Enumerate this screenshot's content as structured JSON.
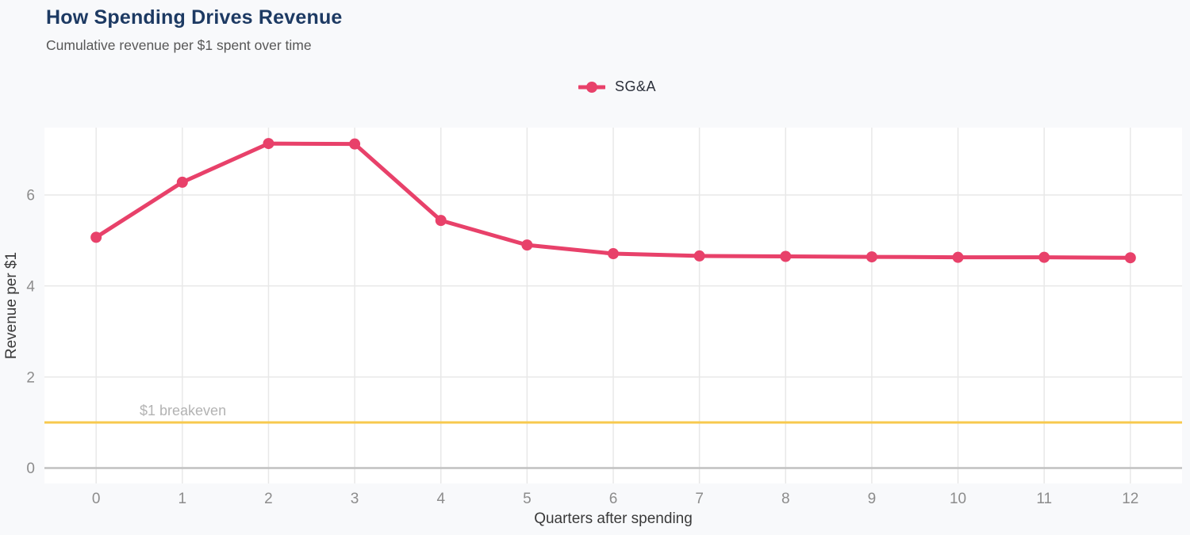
{
  "header": {
    "title": "How Spending Drives Revenue",
    "subtitle": "Cumulative revenue per $1 spent over time"
  },
  "legend": {
    "series_label": "SG&A",
    "position": "top-center"
  },
  "chart_data": {
    "type": "line",
    "title": "How Spending Drives Revenue",
    "subtitle": "Cumulative revenue per $1 spent over time",
    "xlabel": "Quarters after spending",
    "ylabel": "Revenue per $1",
    "x": [
      0,
      1,
      2,
      3,
      4,
      5,
      6,
      7,
      8,
      9,
      10,
      11,
      12
    ],
    "series": [
      {
        "name": "SG&A",
        "color": "#e8416a",
        "values": [
          5.07,
          6.28,
          7.13,
          7.12,
          5.44,
          4.9,
          4.71,
          4.66,
          4.65,
          4.64,
          4.63,
          4.63,
          4.62
        ]
      }
    ],
    "reference_line": {
      "value": 1,
      "label": "$1 breakeven",
      "color": "#f7c94e",
      "label_color": "#b3b3b3"
    },
    "xticks": [
      0,
      1,
      2,
      3,
      4,
      5,
      6,
      7,
      8,
      9,
      10,
      11,
      12
    ],
    "yticks": [
      0,
      2,
      4,
      6
    ],
    "xlim": [
      -0.6,
      12.6
    ],
    "ylim": [
      -0.34,
      7.48
    ],
    "grid": true,
    "legend_position": "top-center"
  },
  "colors": {
    "page_background": "#f8f9fb",
    "plot_background": "#ffffff",
    "gridline": "#e8e8e8",
    "zero_line": "#c1c1c1",
    "tick_label": "#8c8c8c",
    "axis_title": "#3a3a3a",
    "title": "#1d3a63",
    "subtitle": "#575757",
    "series": "#e8416a",
    "reference": "#f7c94e"
  }
}
